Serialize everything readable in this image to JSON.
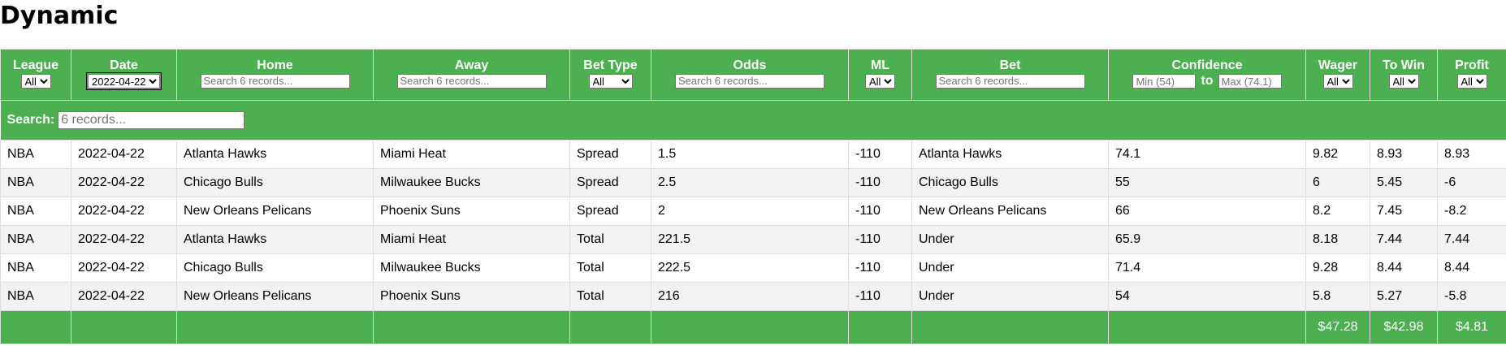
{
  "page": {
    "title": "Dynamic"
  },
  "table": {
    "columns": {
      "league": {
        "label": "League",
        "filter": "All"
      },
      "date": {
        "label": "Date",
        "filter": "2022-04-22"
      },
      "home": {
        "label": "Home",
        "placeholder": "Search 6 records..."
      },
      "away": {
        "label": "Away",
        "placeholder": "Search 6 records..."
      },
      "bet_type": {
        "label": "Bet Type",
        "filter": "All"
      },
      "odds": {
        "label": "Odds",
        "placeholder": "Search 6 records..."
      },
      "ml": {
        "label": "ML",
        "filter": "All"
      },
      "bet": {
        "label": "Bet",
        "placeholder": "Search 6 records..."
      },
      "confidence": {
        "label": "Confidence",
        "min_placeholder": "Min (54)",
        "max_placeholder": "Max (74.1)",
        "separator": "to"
      },
      "wager": {
        "label": "Wager",
        "filter": "All"
      },
      "to_win": {
        "label": "To Win",
        "filter": "All"
      },
      "profit": {
        "label": "Profit",
        "filter": "All"
      }
    },
    "global_search": {
      "label": "Search:",
      "placeholder": "6 records..."
    },
    "rows": [
      [
        "NBA",
        "2022-04-22",
        "Atlanta Hawks",
        "Miami Heat",
        "Spread",
        "1.5",
        "-110",
        "Atlanta Hawks",
        "74.1",
        "9.82",
        "8.93",
        "8.93"
      ],
      [
        "NBA",
        "2022-04-22",
        "Chicago Bulls",
        "Milwaukee Bucks",
        "Spread",
        "2.5",
        "-110",
        "Chicago Bulls",
        "55",
        "6",
        "5.45",
        "-6"
      ],
      [
        "NBA",
        "2022-04-22",
        "New Orleans Pelicans",
        "Phoenix Suns",
        "Spread",
        "2",
        "-110",
        "New Orleans Pelicans",
        "66",
        "8.2",
        "7.45",
        "-8.2"
      ],
      [
        "NBA",
        "2022-04-22",
        "Atlanta Hawks",
        "Miami Heat",
        "Total",
        "221.5",
        "-110",
        "Under",
        "65.9",
        "8.18",
        "7.44",
        "7.44"
      ],
      [
        "NBA",
        "2022-04-22",
        "Chicago Bulls",
        "Milwaukee Bucks",
        "Total",
        "222.5",
        "-110",
        "Under",
        "71.4",
        "9.28",
        "8.44",
        "8.44"
      ],
      [
        "NBA",
        "2022-04-22",
        "New Orleans Pelicans",
        "Phoenix Suns",
        "Total",
        "216",
        "-110",
        "Under",
        "54",
        "5.8",
        "5.27",
        "-5.8"
      ]
    ],
    "totals": {
      "wager": "$47.28",
      "to_win": "$42.98",
      "profit": "$4.81"
    }
  },
  "colors": {
    "header_bg": "#4caf50",
    "header_text": "#ffffff",
    "stripe": "#f2f2f2",
    "border": "#dddddd"
  }
}
